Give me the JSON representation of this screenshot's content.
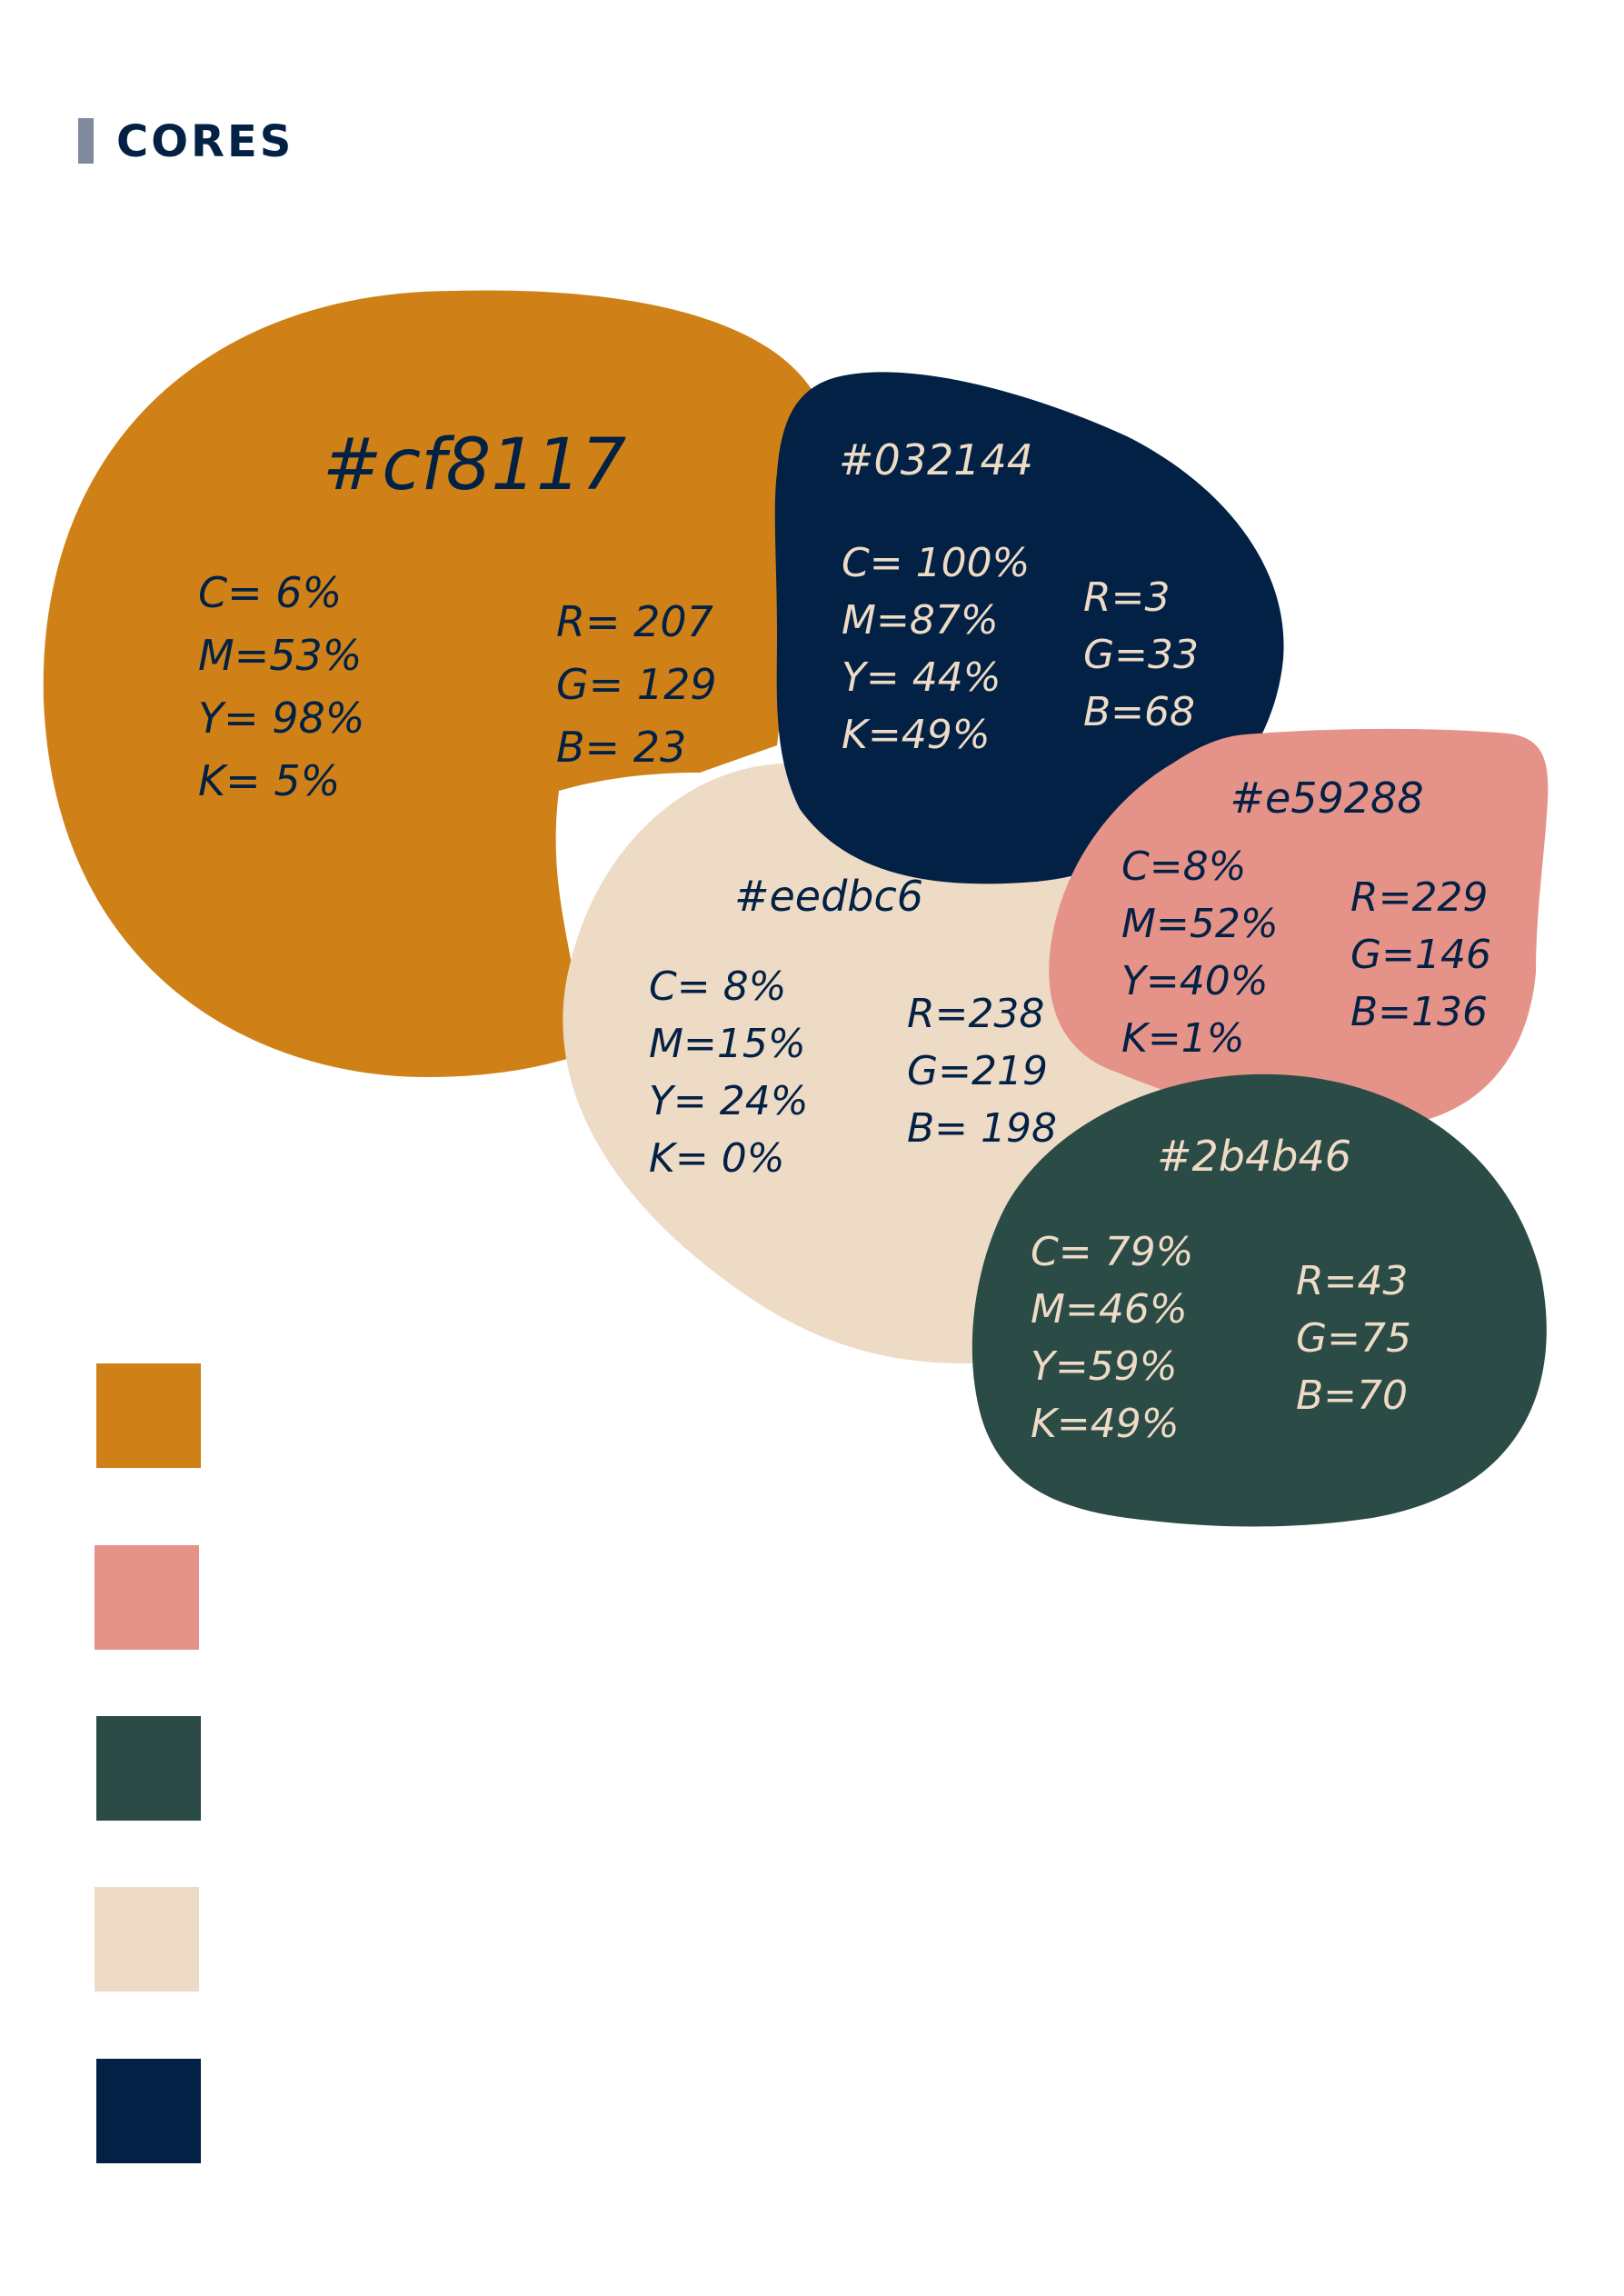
{
  "header": {
    "title": "CORES"
  },
  "palette": [
    {
      "hex": "#cf8117",
      "cmyk": [
        "C= 6%",
        "M=53%",
        "Y= 98%",
        "K= 5%"
      ],
      "rgb": [
        "R= 207",
        "G=  129",
        "B= 23"
      ]
    },
    {
      "hex": "#032144",
      "cmyk": [
        "C= 100%",
        "M=87%",
        "Y= 44%",
        "K=49%"
      ],
      "rgb": [
        "R=3",
        "G=33",
        "B=68"
      ]
    },
    {
      "hex": "#eedbc6",
      "cmyk": [
        "C= 8%",
        "M=15%",
        "Y= 24%",
        "K= 0%"
      ],
      "rgb": [
        "R=238",
        "G=219",
        "B= 198"
      ]
    },
    {
      "hex": "#e59288",
      "cmyk": [
        "C=8%",
        "M=52%",
        "Y=40%",
        "K=1%"
      ],
      "rgb": [
        "R=229",
        "G=146",
        "B=136"
      ]
    },
    {
      "hex": "#2b4b46",
      "cmyk": [
        "C= 79%",
        "M=46%",
        "Y=59%",
        "K=49%"
      ],
      "rgb": [
        "R=43",
        "G=75",
        "B=70"
      ]
    }
  ],
  "swatches": [
    "#cf8117",
    "#e59288",
    "#2b4b46",
    "#eedbc6",
    "#032144"
  ],
  "colors": {
    "text_dark": "#032144",
    "text_light": "#eedbc6",
    "header_bar": "#7f8a9c"
  }
}
